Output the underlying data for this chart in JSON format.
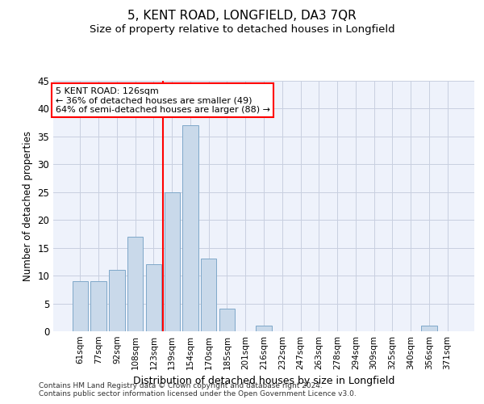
{
  "title": "5, KENT ROAD, LONGFIELD, DA3 7QR",
  "subtitle": "Size of property relative to detached houses in Longfield",
  "xlabel": "Distribution of detached houses by size in Longfield",
  "ylabel": "Number of detached properties",
  "categories": [
    "61sqm",
    "77sqm",
    "92sqm",
    "108sqm",
    "123sqm",
    "139sqm",
    "154sqm",
    "170sqm",
    "185sqm",
    "201sqm",
    "216sqm",
    "232sqm",
    "247sqm",
    "263sqm",
    "278sqm",
    "294sqm",
    "309sqm",
    "325sqm",
    "340sqm",
    "356sqm",
    "371sqm"
  ],
  "values": [
    9,
    9,
    11,
    17,
    12,
    25,
    37,
    13,
    4,
    0,
    1,
    0,
    0,
    0,
    0,
    0,
    0,
    0,
    0,
    1,
    0
  ],
  "bar_color": "#c9d9ea",
  "bar_edge_color": "#7fa8c9",
  "grid_color": "#c8cfe0",
  "background_color": "#eef2fb",
  "ylim": [
    0,
    45
  ],
  "yticks": [
    0,
    5,
    10,
    15,
    20,
    25,
    30,
    35,
    40,
    45
  ],
  "annotation_box_text": "5 KENT ROAD: 126sqm\n← 36% of detached houses are smaller (49)\n64% of semi-detached houses are larger (88) →",
  "vline_x_index": 4.5,
  "footer_line1": "Contains HM Land Registry data © Crown copyright and database right 2024.",
  "footer_line2": "Contains public sector information licensed under the Open Government Licence v3.0.",
  "title_fontsize": 11,
  "subtitle_fontsize": 9.5,
  "ylabel_fontsize": 8.5,
  "xlabel_fontsize": 9,
  "tick_fontsize": 7.5,
  "ytick_fontsize": 8.5
}
